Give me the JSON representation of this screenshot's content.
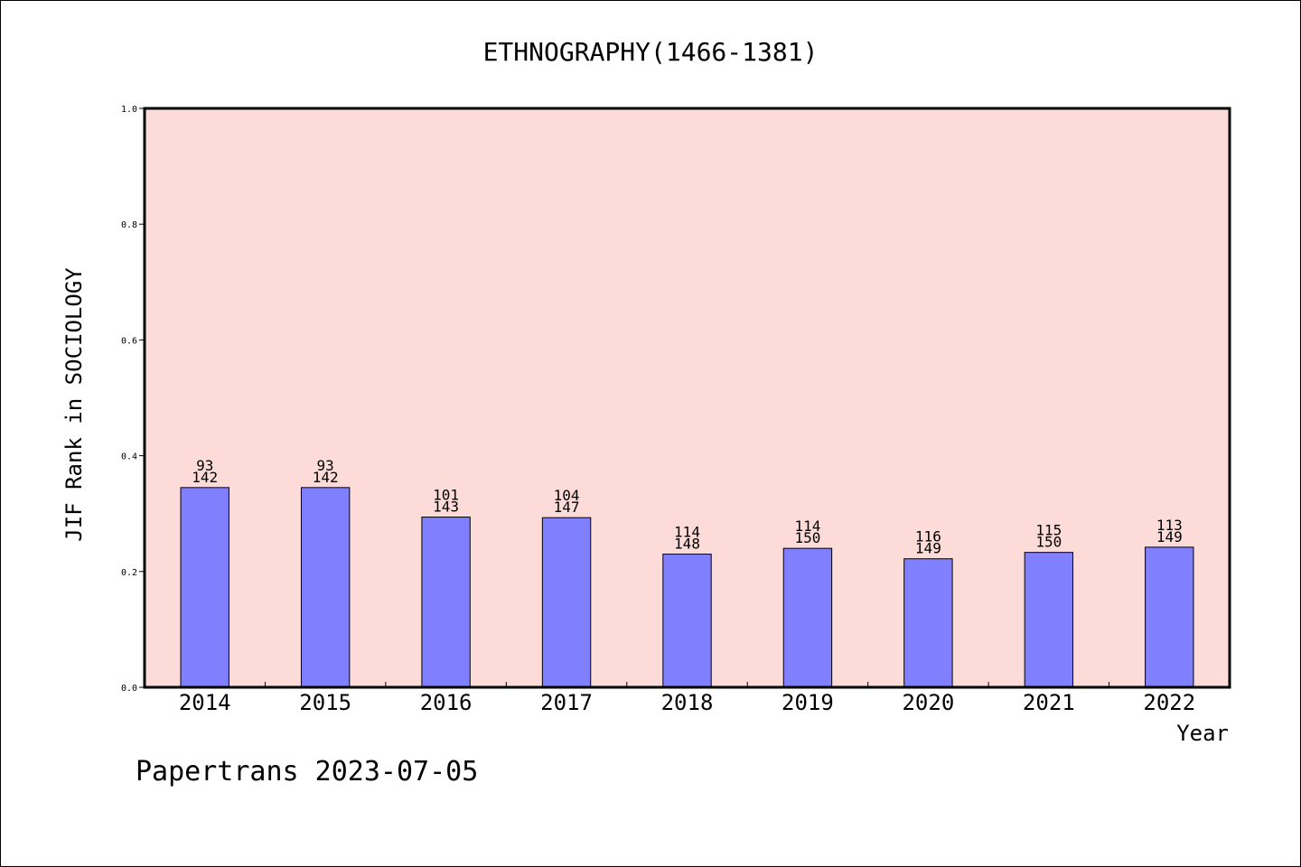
{
  "chart_data": {
    "type": "bar",
    "title": "ETHNOGRAPHY(1466-1381)",
    "xlabel": "Year",
    "ylabel": "JIF Rank in SOCIOLOGY",
    "ylim": [
      0,
      1.0
    ],
    "yticks": [
      "0.0",
      "0.2",
      "0.4",
      "0.6",
      "0.8",
      "1.0"
    ],
    "categories": [
      "2014",
      "2015",
      "2016",
      "2017",
      "2018",
      "2019",
      "2020",
      "2021",
      "2022"
    ],
    "values": [
      0.345,
      0.345,
      0.294,
      0.293,
      0.23,
      0.24,
      0.222,
      0.233,
      0.242
    ],
    "rank": [
      "93",
      "93",
      "101",
      "104",
      "114",
      "114",
      "116",
      "115",
      "113"
    ],
    "total": [
      "142",
      "142",
      "143",
      "147",
      "148",
      "150",
      "149",
      "150",
      "149"
    ],
    "grid": false,
    "colors": {
      "plot_background": "#fddbd8",
      "bar": "#8080ff",
      "bar_edge": "#000000"
    }
  },
  "footer": "Papertrans 2023-07-05"
}
